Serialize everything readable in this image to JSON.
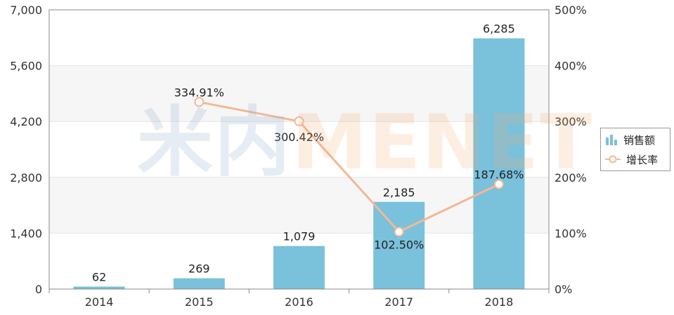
{
  "watermark": {
    "text_cn": "米内",
    "text_en": "MENET"
  },
  "legend": {
    "items": [
      {
        "label": "销售额",
        "icon": "bar-series-icon"
      },
      {
        "label": "增长率",
        "icon": "line-series-icon"
      }
    ]
  },
  "chart_data": {
    "type": "bar",
    "categories": [
      "2014",
      "2015",
      "2016",
      "2017",
      "2018"
    ],
    "series": [
      {
        "name": "销售额",
        "type": "bar",
        "axis": "left",
        "values": [
          62,
          269,
          1079,
          2185,
          6285
        ],
        "labels": [
          "62",
          "269",
          "1,079",
          "2,185",
          "6,285"
        ],
        "color": "#7ac1dc"
      },
      {
        "name": "增长率",
        "type": "line",
        "axis": "right",
        "x": [
          "2015",
          "2016",
          "2017",
          "2018"
        ],
        "values": [
          334.91,
          300.42,
          102.5,
          187.68
        ],
        "labels": [
          "334.91%",
          "300.42%",
          "102.50%",
          "187.68%"
        ],
        "color": "#f4b896"
      }
    ],
    "y_left": {
      "ylim": [
        0,
        7000
      ],
      "ticks": [
        "0",
        "1,400",
        "2,800",
        "4,200",
        "5,600",
        "7,000"
      ]
    },
    "y_right": {
      "ylim": [
        0,
        500
      ],
      "ticks": [
        "0%",
        "100%",
        "200%",
        "300%",
        "400%",
        "500%"
      ]
    },
    "legend_position": "right",
    "grid": true
  }
}
